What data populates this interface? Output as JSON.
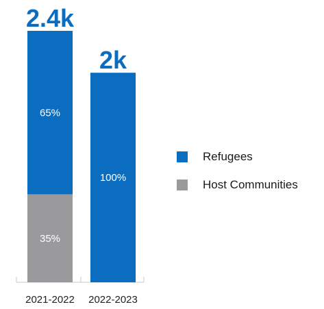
{
  "chart_data": {
    "type": "bar",
    "stacked": true,
    "categories": [
      "2021-2022",
      "2022-2023"
    ],
    "totals": [
      2400,
      2000
    ],
    "total_labels": [
      "2.4k",
      "2k"
    ],
    "series": [
      {
        "name": "Refugees",
        "color": "#0a6dbf",
        "percent": [
          65,
          100
        ],
        "labels": [
          "65%",
          "100%"
        ]
      },
      {
        "name": "Host Communities",
        "color": "#9a9a9c",
        "percent": [
          35,
          0
        ],
        "labels": [
          "35%",
          ""
        ]
      }
    ],
    "colors": {
      "total_label": "#0a6dbf",
      "percent_label": "#ffffff",
      "tick_label": "#222222",
      "axis": "#c8c8c8"
    },
    "legend": "right",
    "grid": false
  }
}
